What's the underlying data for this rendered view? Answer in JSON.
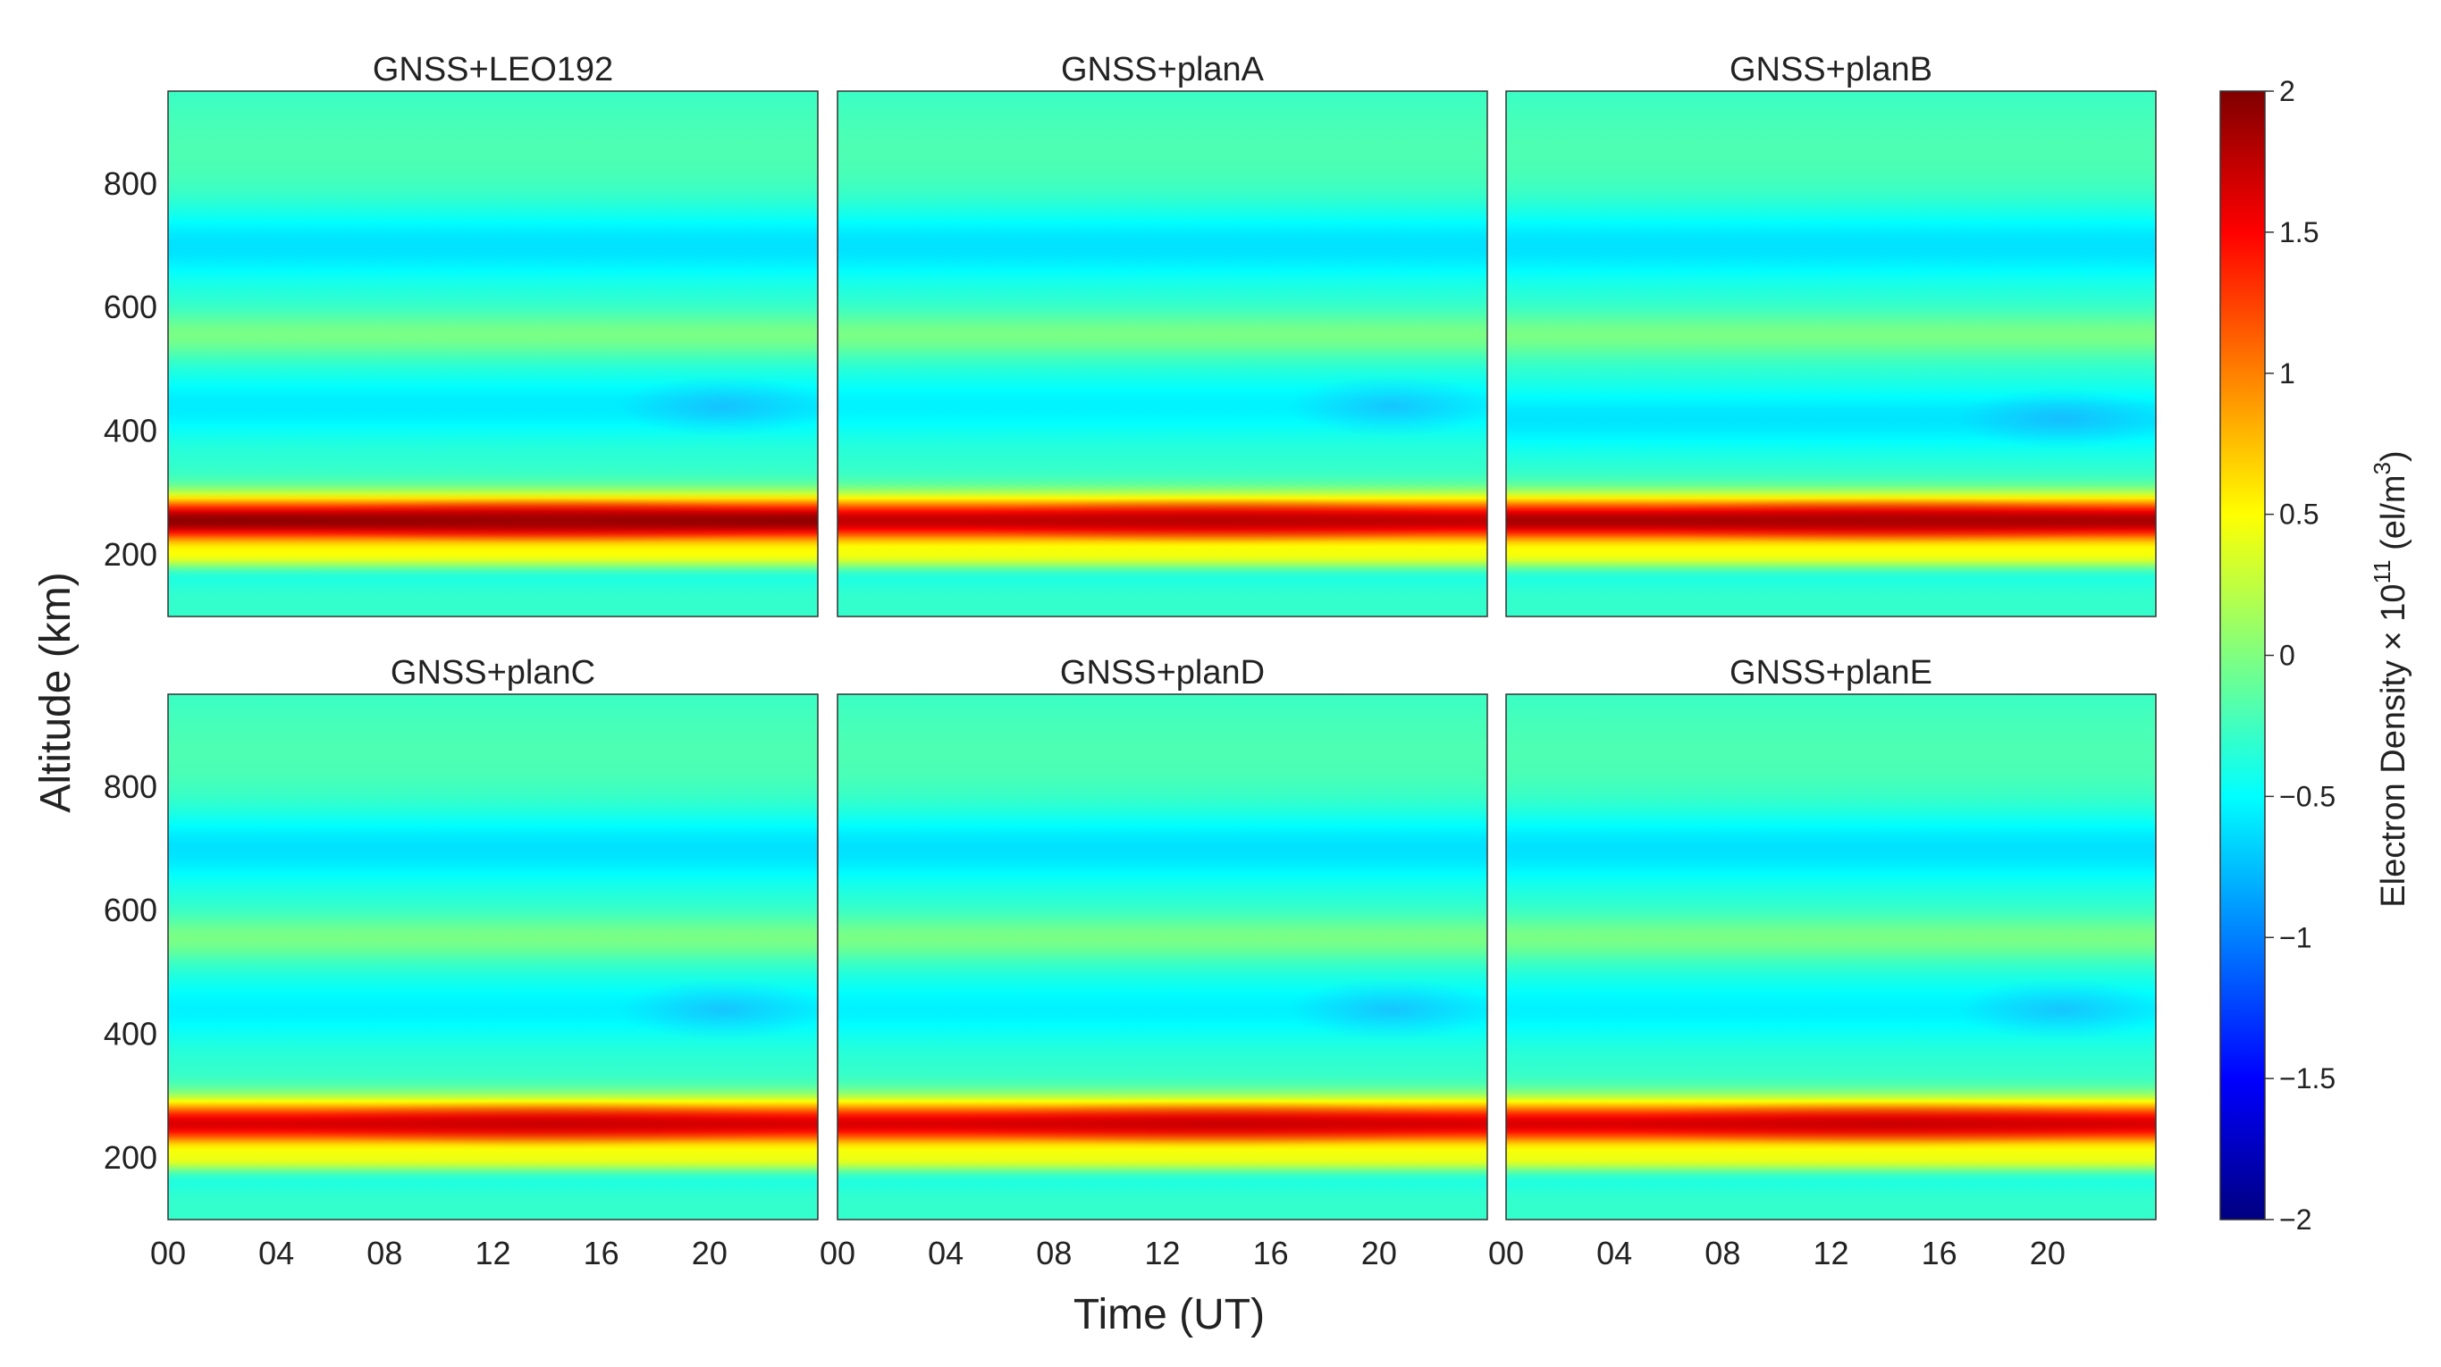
{
  "chart_data": {
    "type": "heatmap",
    "xlabel": "Time (UT)",
    "ylabel": "Altitude (km)",
    "x_unit": "hours UT",
    "xlim": [
      0,
      24
    ],
    "ylim": [
      100,
      950
    ],
    "x_ticks": [
      0,
      4,
      8,
      12,
      16,
      20
    ],
    "x_tick_labels": [
      "00",
      "04",
      "08",
      "12",
      "16",
      "20"
    ],
    "y_ticks": [
      200,
      400,
      600,
      800
    ],
    "y_tick_labels": [
      "200",
      "400",
      "600",
      "800"
    ],
    "colorbar": {
      "label": "Electron Density × 10",
      "label_exp": "11",
      "label_unit_pre": " (el/m",
      "label_unit_exp": "3",
      "label_unit_post": ")",
      "colormap": "jet",
      "range": [
        -2,
        2
      ],
      "ticks": [
        -2,
        -1.5,
        -1,
        -0.5,
        0,
        0.5,
        1,
        1.5,
        2
      ],
      "tick_labels": [
        "−2",
        "−1.5",
        "−1",
        "−0.5",
        "0",
        "0.5",
        "1",
        "1.5",
        "2"
      ]
    },
    "panels": [
      {
        "title": "GNSS+LEO192",
        "peak_altitude_km": 255,
        "peak_value": 1.9,
        "mid_altitude_trough_km": 440,
        "trough_value": -0.8
      },
      {
        "title": "GNSS+planA",
        "peak_altitude_km": 255,
        "peak_value": 1.7,
        "mid_altitude_trough_km": 440,
        "trough_value": -0.75
      },
      {
        "title": "GNSS+planB",
        "peak_altitude_km": 255,
        "peak_value": 1.8,
        "mid_altitude_trough_km": 420,
        "trough_value": -0.85
      },
      {
        "title": "GNSS+planC",
        "peak_altitude_km": 255,
        "peak_value": 1.6,
        "mid_altitude_trough_km": 440,
        "trough_value": -0.75
      },
      {
        "title": "GNSS+planD",
        "peak_altitude_km": 255,
        "peak_value": 1.6,
        "mid_altitude_trough_km": 440,
        "trough_value": -0.75
      },
      {
        "title": "GNSS+planE",
        "peak_altitude_km": 255,
        "peak_value": 1.6,
        "mid_altitude_trough_km": 440,
        "trough_value": -0.75
      }
    ]
  }
}
